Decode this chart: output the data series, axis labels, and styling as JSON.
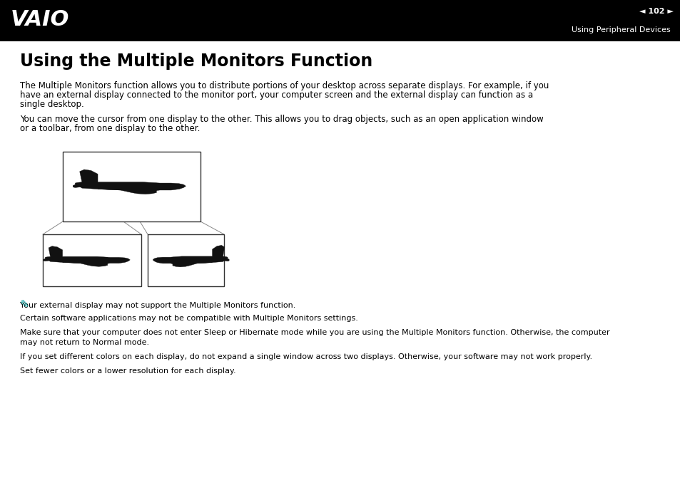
{
  "header_bg": "#000000",
  "header_text_color": "#ffffff",
  "page_num": "102",
  "header_right_text": "Using Peripheral Devices",
  "body_bg": "#ffffff",
  "body_text_color": "#000000",
  "title": "Using the Multiple Monitors Function",
  "title_fontsize": 17,
  "para1_line1": "The Multiple Monitors function allows you to distribute portions of your desktop across separate displays. For example, if you",
  "para1_line2": "have an external display connected to the monitor port, your computer screen and the external display can function as a",
  "para1_line3": "single desktop.",
  "para2_line1": "You can move the cursor from one display to the other. This allows you to drag objects, such as an open application window",
  "para2_line2": "or a toolbar, from one display to the other.",
  "note_color": "#009999",
  "note1": "Your external display may not support the Multiple Monitors function.",
  "note2": "Certain software applications may not be compatible with Multiple Monitors settings.",
  "note3_line1": "Make sure that your computer does not enter Sleep or Hibernate mode while you are using the Multiple Monitors function. Otherwise, the computer",
  "note3_line2": "may not return to Normal mode.",
  "note4": "If you set different colors on each display, do not expand a single window across two displays. Otherwise, your software may not work properly.",
  "note5": "Set fewer colors or a lower resolution for each display.",
  "body_fontsize": 8.5,
  "note_fontsize": 8,
  "vaio_text": "VAIO"
}
